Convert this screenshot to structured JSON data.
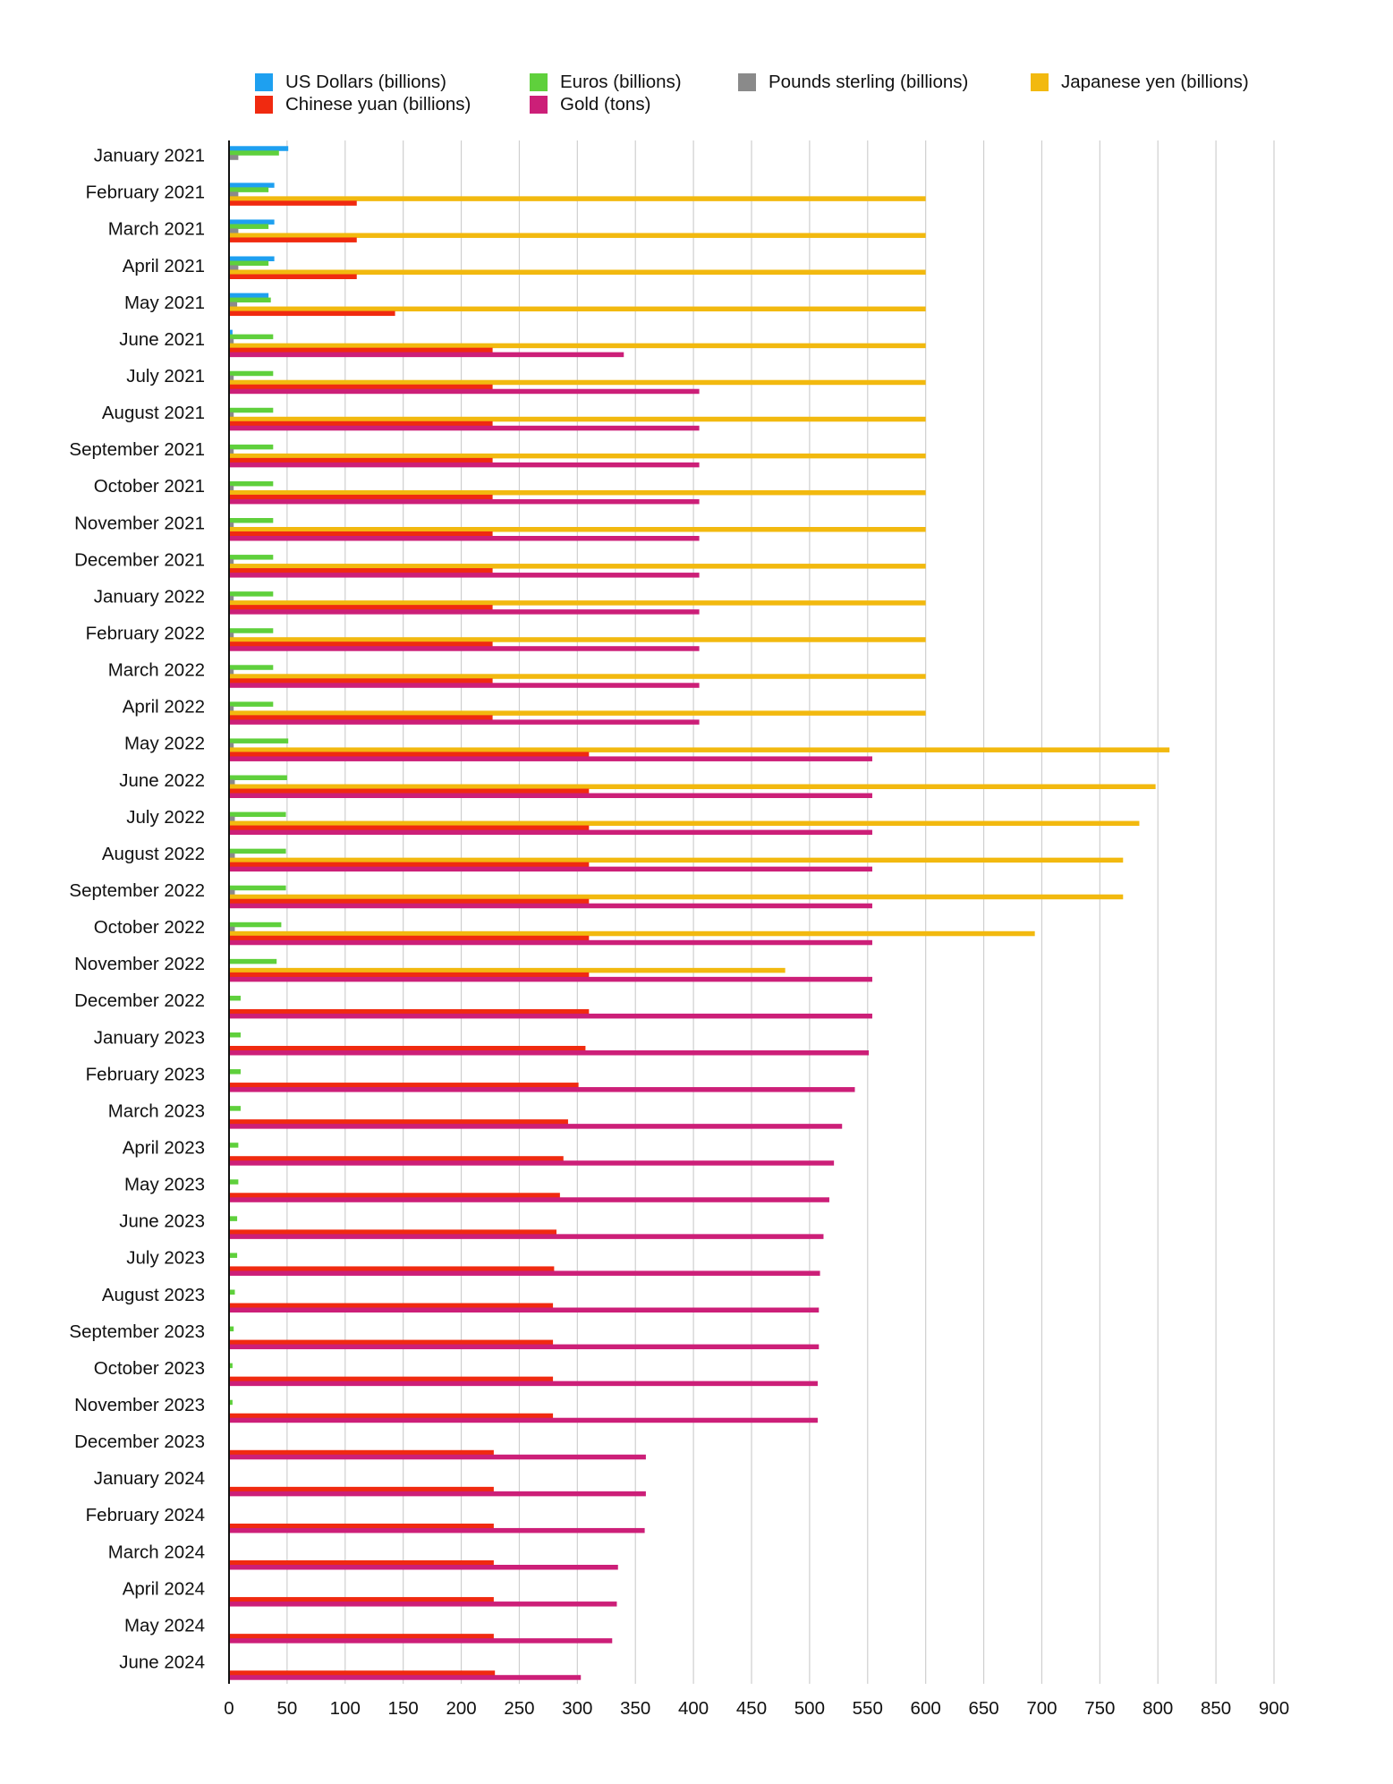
{
  "chart_data": {
    "type": "bar",
    "orientation": "horizontal",
    "title": "",
    "xlabel": "",
    "ylabel": "",
    "xlim": [
      0,
      900
    ],
    "xticks": [
      "0",
      "50",
      "100",
      "150",
      "200",
      "250",
      "300",
      "350",
      "400",
      "450",
      "500",
      "550",
      "600",
      "650",
      "700",
      "750",
      "800",
      "850",
      "900"
    ],
    "grid": true,
    "legend_position": "top",
    "categories": [
      "January 2021",
      "February 2021",
      "March 2021",
      "April 2021",
      "May 2021",
      "June 2021",
      "July 2021",
      "August 2021",
      "September 2021",
      "October 2021",
      "November 2021",
      "December 2021",
      "January 2022",
      "February 2022",
      "March 2022",
      "April 2022",
      "May 2022",
      "June 2022",
      "July 2022",
      "August 2022",
      "September 2022",
      "October 2022",
      "November 2022",
      "December 2022",
      "January 2023",
      "February 2023",
      "March 2023",
      "April 2023",
      "May 2023",
      "June 2023",
      "July 2023",
      "August 2023",
      "September 2023",
      "October 2023",
      "November 2023",
      "December 2023",
      "January 2024",
      "February 2024",
      "March 2024",
      "April 2024",
      "May 2024",
      "June 2024"
    ],
    "series": [
      {
        "name": "US Dollars (billions)",
        "color": "#1ea0f0",
        "values": [
          51,
          39,
          39,
          39,
          34,
          3,
          0,
          0,
          0,
          0,
          0,
          0,
          0,
          0,
          0,
          0,
          0,
          0,
          0,
          0,
          0,
          0,
          0,
          0,
          0,
          0,
          0,
          0,
          0,
          0,
          0,
          0,
          0,
          0,
          0,
          0,
          0,
          0,
          0,
          0,
          0,
          0
        ]
      },
      {
        "name": "Euros (billions)",
        "color": "#5fd03c",
        "values": [
          43,
          34,
          34,
          34,
          36,
          38,
          38,
          38,
          38,
          38,
          38,
          38,
          38,
          38,
          38,
          38,
          51,
          50,
          49,
          49,
          49,
          45,
          41,
          10,
          10,
          10,
          10,
          8,
          8,
          7,
          7,
          5,
          4,
          3,
          3,
          0,
          0,
          0,
          0,
          0,
          0,
          0
        ]
      },
      {
        "name": "Pounds sterling (billions)",
        "color": "#8a8a8a",
        "values": [
          8,
          8,
          8,
          8,
          7,
          4,
          4,
          4,
          4,
          4,
          4,
          4,
          4,
          4,
          4,
          4,
          4,
          5,
          5,
          5,
          5,
          5,
          0,
          0,
          0,
          0,
          0,
          0,
          0,
          0,
          0,
          0,
          0,
          0,
          0,
          0,
          0,
          0,
          0,
          0,
          0,
          0
        ]
      },
      {
        "name": "Japanese yen (billions)",
        "color": "#f2b90f",
        "values": [
          0,
          600,
          600,
          600,
          600,
          600,
          600,
          600,
          600,
          600,
          600,
          600,
          600,
          600,
          600,
          600,
          810,
          798,
          784,
          770,
          770,
          694,
          479,
          0,
          0,
          0,
          0,
          0,
          0,
          0,
          0,
          0,
          0,
          0,
          0,
          0,
          0,
          0,
          0,
          0,
          0,
          0
        ]
      },
      {
        "name": "Chinese yuan (billions)",
        "color": "#f02a10",
        "values": [
          0,
          110,
          110,
          110,
          143,
          227,
          227,
          227,
          227,
          227,
          227,
          227,
          227,
          227,
          227,
          227,
          310,
          310,
          310,
          310,
          310,
          310,
          310,
          310,
          307,
          301,
          292,
          288,
          285,
          282,
          280,
          279,
          279,
          279,
          279,
          228,
          228,
          228,
          228,
          228,
          228,
          229
        ]
      },
      {
        "name": "Gold (tons)",
        "color": "#cc1f78",
        "values": [
          0,
          0,
          0,
          0,
          0,
          340,
          405,
          405,
          405,
          405,
          405,
          405,
          405,
          405,
          405,
          405,
          554,
          554,
          554,
          554,
          554,
          554,
          554,
          554,
          551,
          539,
          528,
          521,
          517,
          512,
          509,
          508,
          508,
          507,
          507,
          359,
          359,
          358,
          335,
          334,
          330,
          303
        ]
      }
    ],
    "legend_order": [
      "US Dollars (billions)",
      "Chinese yuan (billions)",
      "Euros (billions)",
      "Gold (tons)",
      "Pounds sterling (billions)",
      "Japanese yen (billions)"
    ]
  }
}
